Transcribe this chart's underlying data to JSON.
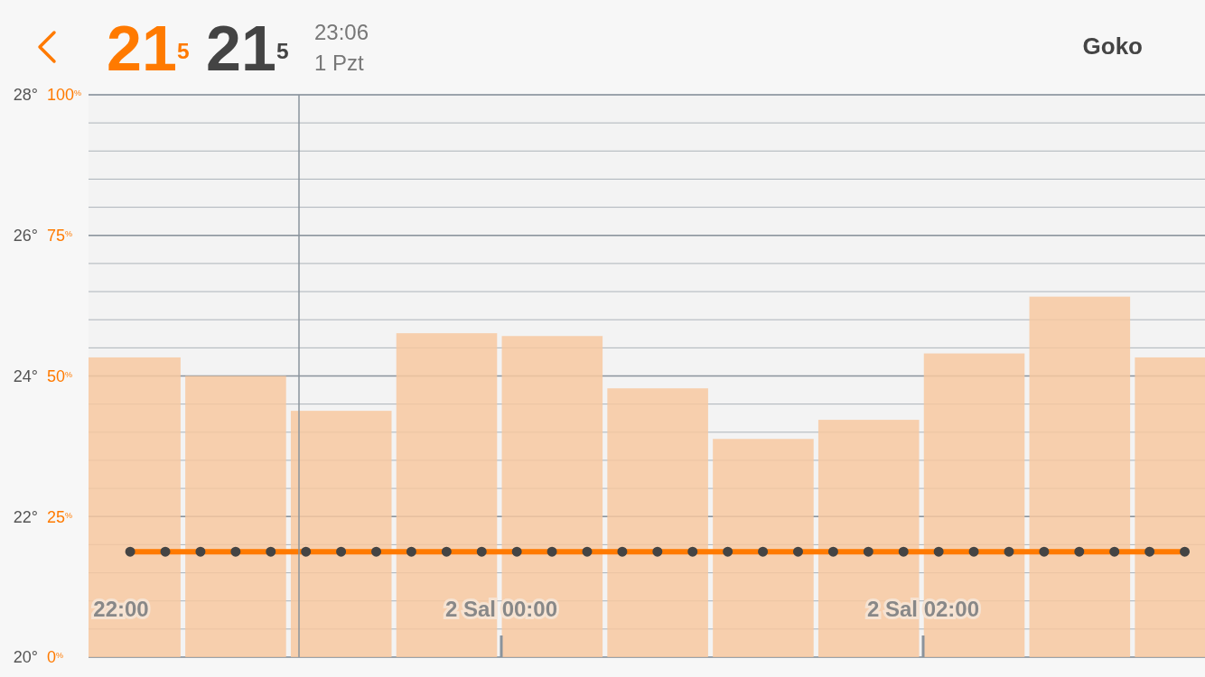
{
  "chart_data": {
    "type": "bar",
    "title": "Goko",
    "annotations": [
      "21$^{5}$",
      "21$^{5}$",
      "23:06",
      "1 Pzt",
      "22:00",
      "2 Sal 00:00",
      "2 Sal 02:00"
    ],
    "categories": [
      null,
      null,
      null,
      null,
      null,
      null,
      null,
      null,
      null,
      null,
      null
    ],
    "ylim": [
      20,
      28
    ],
    "yticks": [
      {
        "value": 20,
        "label": "20°"
      },
      {
        "value": 22,
        "label": "22°"
      },
      {
        "value": 24,
        "label": "24°"
      },
      {
        "value": 26,
        "label": "26°"
      },
      {
        "value": 28,
        "label": "28°"
      }
    ],
    "y2lim": [
      0,
      100
    ],
    "y2ticks": [
      {
        "value": 0,
        "label": "0$^{%}$"
      },
      {
        "value": 5,
        "label": null
      },
      {
        "value": 10,
        "label": null
      },
      {
        "value": 15,
        "label": null
      },
      {
        "value": 20,
        "label": null
      },
      {
        "value": 25,
        "label": "25$^{%}$"
      },
      {
        "value": 30,
        "label": null
      },
      {
        "value": 35,
        "label": null
      },
      {
        "value": 40,
        "label": null
      },
      {
        "value": 45,
        "label": null
      },
      {
        "value": 50,
        "label": "50$^{%}$"
      },
      {
        "value": 55,
        "label": null
      },
      {
        "value": 60,
        "label": null
      },
      {
        "value": 65,
        "label": null
      },
      {
        "value": 70,
        "label": null
      },
      {
        "value": 75,
        "label": "75$^{%}$"
      },
      {
        "value": 80,
        "label": null
      },
      {
        "value": 85,
        "label": null
      },
      {
        "value": 90,
        "label": null
      },
      {
        "value": 95,
        "label": null
      },
      {
        "value": 100,
        "label": "100$^{%}$"
      }
    ],
    "grid": "y",
    "series": [
      {
        "axis": "y2",
        "color": "#f7c8a0",
        "values": [
          53.3,
          50,
          43.8,
          57.6,
          57.1,
          47.8,
          38.8,
          42.2,
          54,
          64.1,
          53.3
        ]
      },
      {
        "type": "line",
        "color": "#ff7a00",
        "values": [
          21.5,
          21.5,
          21.5,
          21.5,
          21.5,
          21.5,
          21.5,
          21.5,
          21.5,
          21.5,
          21.5
        ]
      },
      {
        "type": "line",
        "line_style": "dotted",
        "color": "#444444",
        "values": [
          21.5,
          21.5,
          21.5,
          21.5,
          21.5,
          21.5,
          21.5,
          21.5,
          21.5,
          21.5,
          21.5
        ]
      }
    ]
  }
}
